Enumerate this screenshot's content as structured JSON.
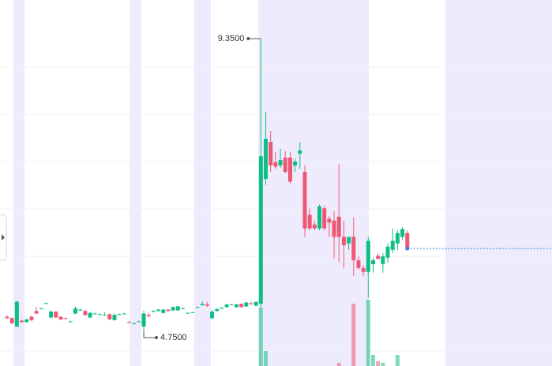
{
  "chart_data": {
    "type": "candlestick",
    "ylim": [
      4.313,
      9.945
    ],
    "up_color": "#0fbd87",
    "down_color": "#ef5874",
    "last_price_color": "#3d7df5",
    "open": [
      5.07,
      5.05,
      4.92,
      5.01,
      4.99,
      5.07,
      5.16,
      5.2,
      5.28,
      5.06,
      5.15,
      5.07,
      5.05,
      5.0,
      5.12,
      5.17,
      5.16,
      5.06,
      5.12,
      5.11,
      5.1,
      5.11,
      5.02,
      5.11,
      5.12,
      4.99,
      4.97,
      5.0,
      4.92,
      5.1,
      5.15,
      5.16,
      5.13,
      5.18,
      5.17,
      5.17,
      5.2,
      5.13,
      5.14,
      5.22,
      5.25,
      5.26,
      5.05,
      5.16,
      5.2,
      5.22,
      5.26,
      5.22,
      5.27,
      5.23,
      5.28,
      5.24,
      5.27,
      7.19,
      7.76,
      7.45,
      7.4,
      7.52,
      7.52,
      7.4,
      7.58,
      7.3,
      6.64,
      6.49,
      6.43,
      6.74,
      6.58,
      6.55,
      6.61,
      6.3,
      6.2,
      6.3,
      5.94,
      5.82,
      5.76,
      5.88,
      6.01,
      5.88,
      5.98,
      6.1,
      6.2,
      6.3,
      6.36
    ],
    "high": [
      5.09,
      5.06,
      5.32,
      5.03,
      5.04,
      5.09,
      5.22,
      5.21,
      5.29,
      5.17,
      5.16,
      5.08,
      5.06,
      5.01,
      5.23,
      5.19,
      5.18,
      5.14,
      5.13,
      5.12,
      5.14,
      5.12,
      5.12,
      5.12,
      5.13,
      5.0,
      4.98,
      5.01,
      5.16,
      5.13,
      5.17,
      5.19,
      5.19,
      5.19,
      5.23,
      5.24,
      5.21,
      5.14,
      5.15,
      5.23,
      5.31,
      5.3,
      5.17,
      5.2,
      5.22,
      5.27,
      5.27,
      5.27,
      5.28,
      5.3,
      5.3,
      5.31,
      9.35,
      8.22,
      7.93,
      7.6,
      7.65,
      7.62,
      7.6,
      7.5,
      7.76,
      7.4,
      6.75,
      6.55,
      6.8,
      6.78,
      6.62,
      6.7,
      7.42,
      6.55,
      6.3,
      6.6,
      6.0,
      5.86,
      6.3,
      5.98,
      6.05,
      6.05,
      6.2,
      6.43,
      6.4,
      6.45,
      6.4
    ],
    "low": [
      5.04,
      4.96,
      4.91,
      4.98,
      4.98,
      5.0,
      5.11,
      5.19,
      5.27,
      5.05,
      5.05,
      5.02,
      5.03,
      4.99,
      5.11,
      5.16,
      5.08,
      5.05,
      5.11,
      5.1,
      5.09,
      5.02,
      5.01,
      5.1,
      5.11,
      4.97,
      4.96,
      4.99,
      4.75,
      5.06,
      5.14,
      5.15,
      5.12,
      5.15,
      5.16,
      5.16,
      5.19,
      5.12,
      5.13,
      5.21,
      5.24,
      5.22,
      5.04,
      5.15,
      5.19,
      5.21,
      5.25,
      5.21,
      5.21,
      5.22,
      5.25,
      5.23,
      5.21,
      7.1,
      7.3,
      7.35,
      7.36,
      7.28,
      7.12,
      7.3,
      7.35,
      6.3,
      6.4,
      6.4,
      6.4,
      6.4,
      6.3,
      5.97,
      5.91,
      5.82,
      6.1,
      5.7,
      5.8,
      5.7,
      5.36,
      5.75,
      5.96,
      5.75,
      5.9,
      6.05,
      6.1,
      6.25,
      6.12
    ],
    "close": [
      5.05,
      4.97,
      5.3,
      4.99,
      5.03,
      5.02,
      5.12,
      5.2,
      5.28,
      5.15,
      5.06,
      5.03,
      5.04,
      5.0,
      5.2,
      5.18,
      5.1,
      5.13,
      5.12,
      5.11,
      5.1,
      5.03,
      5.1,
      5.11,
      5.12,
      4.98,
      4.97,
      5.0,
      5.12,
      5.08,
      5.16,
      5.18,
      5.18,
      5.16,
      5.22,
      5.23,
      5.2,
      5.13,
      5.14,
      5.22,
      5.27,
      5.24,
      5.15,
      5.19,
      5.21,
      5.26,
      5.26,
      5.26,
      5.22,
      5.29,
      5.27,
      5.3,
      7.54,
      7.81,
      7.4,
      7.38,
      7.48,
      7.3,
      7.15,
      7.46,
      7.63,
      6.43,
      6.43,
      6.43,
      6.77,
      6.43,
      6.52,
      6.3,
      6.3,
      6.17,
      6.3,
      5.94,
      5.82,
      5.76,
      6.24,
      5.94,
      5.96,
      6.0,
      6.15,
      6.24,
      6.36,
      6.42,
      6.12
    ],
    "volume": [
      null,
      null,
      null,
      null,
      null,
      null,
      null,
      null,
      null,
      null,
      null,
      null,
      null,
      null,
      null,
      null,
      null,
      null,
      null,
      null,
      null,
      null,
      null,
      null,
      null,
      null,
      null,
      null,
      null,
      null,
      null,
      null,
      null,
      null,
      null,
      null,
      null,
      null,
      null,
      null,
      null,
      null,
      null,
      null,
      null,
      null,
      null,
      null,
      null,
      null,
      null,
      null,
      74,
      19,
      null,
      null,
      null,
      null,
      null,
      null,
      null,
      null,
      null,
      null,
      null,
      null,
      null,
      null,
      4,
      null,
      null,
      79,
      null,
      null,
      84,
      14,
      6,
      4,
      null,
      null,
      14,
      null,
      null
    ],
    "annotations": [
      {
        "value": 9.35,
        "label": "9.3500"
      },
      {
        "value": 4.75,
        "label": "4.7500"
      }
    ]
  }
}
